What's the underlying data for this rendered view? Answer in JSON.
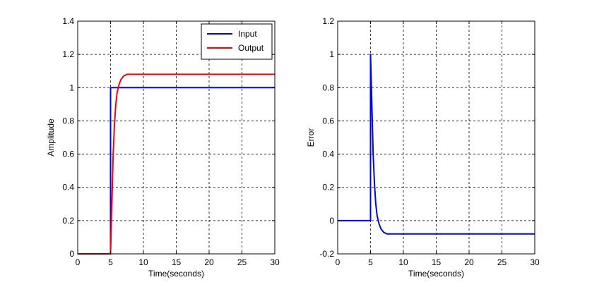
{
  "chart_data": [
    {
      "type": "line",
      "xlabel": "Time(seconds)",
      "ylabel": "Amplitude",
      "xlim": [
        0,
        30
      ],
      "ylim": [
        0,
        1.4
      ],
      "xticks": [
        "0",
        "5",
        "10",
        "15",
        "20",
        "25",
        "30"
      ],
      "yticks": [
        "0",
        "0.2",
        "0.4",
        "0.6",
        "0.8",
        "1",
        "1.2",
        "1.4"
      ],
      "grid": true,
      "legend_position": "top-right",
      "series": [
        {
          "name": "Input",
          "color": "#0000ff",
          "x": [
            0,
            5,
            5,
            30
          ],
          "y": [
            0,
            0,
            1,
            1
          ]
        },
        {
          "name": "Output",
          "color": "#ff0000",
          "x": [
            0,
            5,
            5.2,
            5.4,
            5.6,
            5.8,
            6.0,
            6.3,
            6.6,
            7.0,
            7.5,
            8.0,
            9.0,
            10,
            30
          ],
          "y": [
            0,
            0,
            0.3,
            0.6,
            0.78,
            0.9,
            0.97,
            1.02,
            1.05,
            1.07,
            1.08,
            1.08,
            1.08,
            1.08,
            1.08
          ]
        }
      ]
    },
    {
      "type": "line",
      "xlabel": "Time(seconds)",
      "ylabel": "Error",
      "xlim": [
        0,
        30
      ],
      "ylim": [
        -0.2,
        1.2
      ],
      "xticks": [
        "0",
        "5",
        "10",
        "15",
        "20",
        "25",
        "30"
      ],
      "yticks": [
        "-0.2",
        "0",
        "0.2",
        "0.4",
        "0.6",
        "0.8",
        "1",
        "1.2"
      ],
      "grid": true,
      "series": [
        {
          "name": "",
          "color": "#0000ff",
          "x": [
            0,
            5,
            5,
            5.2,
            5.4,
            5.6,
            5.8,
            6.0,
            6.3,
            6.6,
            7.0,
            7.5,
            8.0,
            9.0,
            10,
            30
          ],
          "y": [
            0,
            0,
            1,
            0.7,
            0.4,
            0.22,
            0.1,
            0.03,
            -0.02,
            -0.05,
            -0.07,
            -0.08,
            -0.08,
            -0.08,
            -0.08,
            -0.08
          ]
        }
      ]
    }
  ]
}
